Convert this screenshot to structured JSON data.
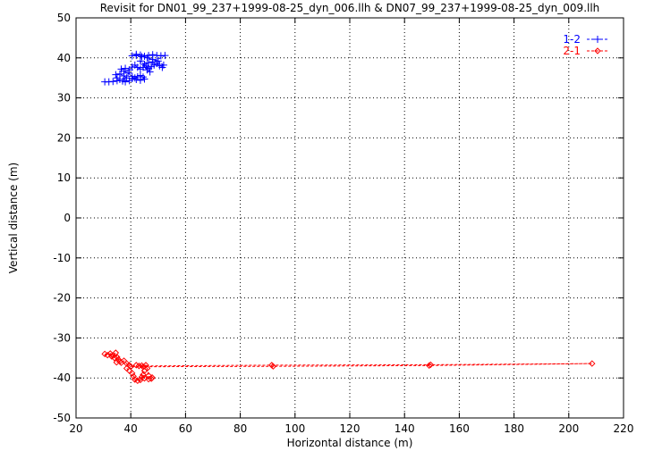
{
  "chart_data": {
    "type": "scatter",
    "title": "Revisit for DN01_99_237+1999-08-25_dyn_006.llh & DN07_99_237+1999-08-25_dyn_009.llh",
    "xlabel": "Horizontal distance (m)",
    "ylabel": "Vertical distance (m)",
    "xlim": [
      20,
      220
    ],
    "ylim": [
      -50,
      50
    ],
    "xticks": [
      20,
      40,
      60,
      80,
      100,
      120,
      140,
      160,
      180,
      200,
      220
    ],
    "yticks": [
      -50,
      -40,
      -30,
      -20,
      -10,
      0,
      10,
      20,
      30,
      40,
      50
    ],
    "grid": true,
    "legend_position": "top-right",
    "series": [
      {
        "name": "1-2",
        "color": "#0000ff",
        "marker": "plus",
        "line": "dashed",
        "points": [
          [
            30.5,
            34.0
          ],
          [
            32.0,
            34.0
          ],
          [
            33.5,
            34.1
          ],
          [
            35.0,
            34.3
          ],
          [
            36.0,
            34.6
          ],
          [
            35.0,
            35.0
          ],
          [
            34.5,
            35.8
          ],
          [
            36.0,
            36.0
          ],
          [
            37.5,
            35.5
          ],
          [
            38.5,
            35.0
          ],
          [
            37.0,
            34.2
          ],
          [
            38.0,
            34.0
          ],
          [
            39.5,
            34.3
          ],
          [
            40.5,
            34.8
          ],
          [
            41.5,
            35.0
          ],
          [
            42.5,
            35.3
          ],
          [
            43.5,
            35.6
          ],
          [
            44.5,
            35.2
          ],
          [
            45.0,
            34.7
          ],
          [
            43.5,
            34.4
          ],
          [
            42.0,
            34.6
          ],
          [
            40.5,
            35.4
          ],
          [
            39.0,
            36.2
          ],
          [
            37.5,
            36.6
          ],
          [
            36.5,
            37.2
          ],
          [
            38.0,
            37.4
          ],
          [
            39.5,
            37.0
          ],
          [
            40.5,
            37.7
          ],
          [
            41.5,
            38.2
          ],
          [
            42.5,
            37.6
          ],
          [
            43.5,
            37.2
          ],
          [
            44.5,
            37.6
          ],
          [
            45.5,
            38.0
          ],
          [
            46.5,
            37.4
          ],
          [
            47.5,
            37.8
          ],
          [
            48.5,
            38.2
          ],
          [
            49.5,
            38.6
          ],
          [
            50.5,
            38.0
          ],
          [
            51.5,
            37.6
          ],
          [
            52.0,
            38.2
          ],
          [
            50.0,
            39.2
          ],
          [
            48.0,
            39.6
          ],
          [
            46.0,
            40.0
          ],
          [
            44.0,
            40.3
          ],
          [
            42.0,
            40.6
          ],
          [
            40.5,
            40.5
          ],
          [
            42.0,
            40.9
          ],
          [
            43.5,
            40.7
          ],
          [
            45.0,
            40.4
          ],
          [
            46.5,
            40.6
          ],
          [
            48.0,
            40.8
          ],
          [
            49.5,
            40.6
          ],
          [
            51.0,
            40.5
          ],
          [
            52.5,
            40.6
          ],
          [
            48.0,
            39.0
          ],
          [
            46.5,
            38.8
          ],
          [
            45.0,
            38.4
          ],
          [
            43.5,
            39.2
          ],
          [
            46.0,
            37.0
          ],
          [
            47.0,
            36.5
          ]
        ]
      },
      {
        "name": "2-1",
        "color": "#ff0000",
        "marker": "diamond",
        "line": "dashed",
        "points": [
          [
            30.5,
            -34.0
          ],
          [
            31.5,
            -34.3
          ],
          [
            32.5,
            -33.9
          ],
          [
            33.5,
            -34.4
          ],
          [
            34.0,
            -35.0
          ],
          [
            33.0,
            -34.6
          ],
          [
            34.5,
            -33.7
          ],
          [
            35.0,
            -34.8
          ],
          [
            35.5,
            -35.4
          ],
          [
            36.0,
            -35.9
          ],
          [
            34.8,
            -36.1
          ],
          [
            36.5,
            -36.2
          ],
          [
            37.5,
            -35.7
          ],
          [
            38.5,
            -36.4
          ],
          [
            39.5,
            -36.8
          ],
          [
            38.5,
            -37.6
          ],
          [
            39.5,
            -38.2
          ],
          [
            40.5,
            -38.8
          ],
          [
            41.0,
            -39.6
          ],
          [
            41.5,
            -40.4
          ],
          [
            42.5,
            -40.7
          ],
          [
            43.5,
            -40.5
          ],
          [
            44.0,
            -39.8
          ],
          [
            44.5,
            -39.2
          ],
          [
            45.0,
            -38.2
          ],
          [
            44.5,
            -37.2
          ],
          [
            45.5,
            -36.8
          ],
          [
            46.0,
            -37.6
          ],
          [
            46.5,
            -39.4
          ],
          [
            47.5,
            -40.2
          ],
          [
            47.8,
            -39.9
          ],
          [
            46.5,
            -40.3
          ],
          [
            45.0,
            -40.1
          ],
          [
            44.0,
            -36.9
          ],
          [
            43.0,
            -37.0
          ],
          [
            91.5,
            -36.8
          ],
          [
            149.5,
            -36.7
          ],
          [
            208.5,
            -36.4
          ],
          [
            149.0,
            -36.9
          ],
          [
            92.0,
            -37.1
          ],
          [
            40.0,
            -37.2
          ],
          [
            42.0,
            -36.8
          ]
        ]
      }
    ]
  }
}
